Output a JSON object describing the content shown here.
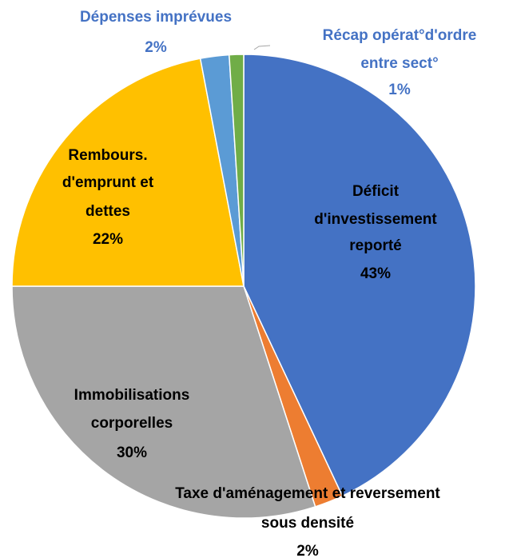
{
  "chart_data": {
    "type": "pie",
    "categories": [
      [
        "Déficit",
        "d'investissement",
        "reporté"
      ],
      [
        "Taxe d'aménagement et reversement",
        "sous densité"
      ],
      [
        "Immobilisations",
        "corporelles"
      ],
      [
        "Rembours.",
        "d'emprunt et",
        "dettes"
      ],
      [
        "Dépenses imprévues"
      ],
      [
        "Récap opérat°d'ordre",
        "entre sect°"
      ]
    ],
    "values": [
      43,
      2,
      30,
      22,
      2,
      1
    ],
    "value_labels": [
      "43%",
      "2%",
      "30%",
      "22%",
      "2%",
      "1%"
    ],
    "colors": [
      "#4472c4",
      "#ed7d31",
      "#a5a5a5",
      "#ffc000",
      "#5b9bd5",
      "#70ad47"
    ]
  }
}
